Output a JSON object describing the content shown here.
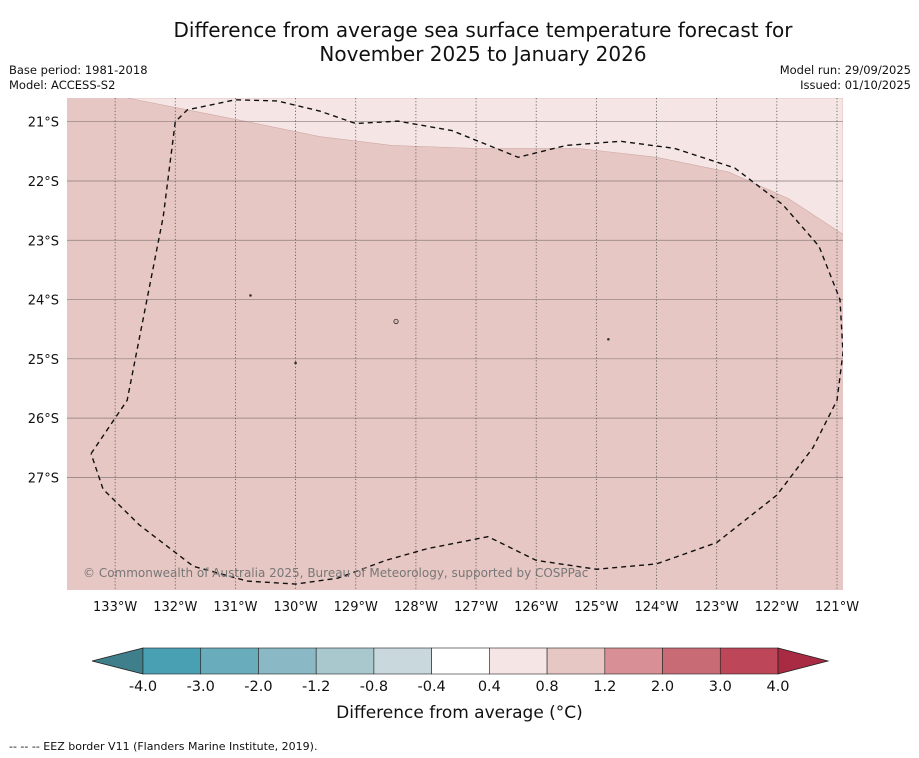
{
  "title_line1": "Difference from average sea surface temperature forecast for",
  "title_line2": "November 2025 to January 2026",
  "base_period": "Base period: 1981-2018",
  "model": "Model: ACCESS-S2",
  "model_run": "Model run: 29/09/2025",
  "issued": "Issued: 01/10/2025",
  "copyright": "© Commonwealth of Australia 2025, Bureau of Meteorology, supported by COSPPac",
  "colorbar_title": "Difference from average (°C)",
  "footnote": "--  --  -- EEZ border V11 (Flanders Marine Institute, 2019).",
  "chart_data": {
    "type": "map",
    "title": "Difference from average sea surface temperature forecast for November 2025 to January 2026",
    "lon_range": [
      -133.8,
      -120.9
    ],
    "lat_range": [
      -28.9,
      -20.6
    ],
    "lon_ticks": [
      -133,
      -132,
      -131,
      -130,
      -129,
      -128,
      -127,
      -126,
      -125,
      -124,
      -123,
      -122,
      -121
    ],
    "lon_tick_labels": [
      "133°W",
      "132°W",
      "131°W",
      "130°W",
      "129°W",
      "128°W",
      "127°W",
      "126°W",
      "125°W",
      "124°W",
      "123°W",
      "122°W",
      "121°W"
    ],
    "lat_ticks": [
      -21,
      -22,
      -23,
      -24,
      -25,
      -26,
      -27
    ],
    "lat_tick_labels": [
      "21°S",
      "22°S",
      "23°S",
      "24°S",
      "25°S",
      "26°S",
      "27°S"
    ],
    "grid": true,
    "fields": [
      {
        "range": "0.4 to 0.8",
        "color": "#f5e6e5",
        "region": "north-east corner",
        "boundary": [
          [
            -132.8,
            -20.6
          ],
          [
            -131.8,
            -20.8
          ],
          [
            -130.8,
            -21.0
          ],
          [
            -129.6,
            -21.25
          ],
          [
            -128.4,
            -21.4
          ],
          [
            -127.0,
            -21.45
          ],
          [
            -125.3,
            -21.45
          ],
          [
            -124.0,
            -21.6
          ],
          [
            -122.8,
            -21.85
          ],
          [
            -121.8,
            -22.3
          ],
          [
            -120.9,
            -22.9
          ]
        ]
      },
      {
        "range": "0.8 to 1.2",
        "color": "#e7c7c3",
        "region": "remainder of domain"
      }
    ],
    "islands": [
      [
        -130.75,
        -23.93
      ],
      [
        -128.33,
        -24.37
      ],
      [
        -130.0,
        -25.07
      ],
      [
        -124.8,
        -24.67
      ]
    ],
    "eez_border": [
      [
        -133.4,
        -26.6
      ],
      [
        -132.8,
        -25.7
      ],
      [
        -132.2,
        -22.6
      ],
      [
        -132.0,
        -21.0
      ],
      [
        -131.8,
        -20.8
      ],
      [
        -131.0,
        -20.63
      ],
      [
        -130.3,
        -20.65
      ],
      [
        -129.6,
        -20.82
      ],
      [
        -129.0,
        -21.03
      ],
      [
        -128.3,
        -20.99
      ],
      [
        -127.4,
        -21.15
      ],
      [
        -126.3,
        -21.6
      ],
      [
        -125.5,
        -21.4
      ],
      [
        -124.6,
        -21.33
      ],
      [
        -123.7,
        -21.45
      ],
      [
        -122.7,
        -21.78
      ],
      [
        -121.9,
        -22.4
      ],
      [
        -121.3,
        -23.1
      ],
      [
        -120.95,
        -24.0
      ],
      [
        -120.9,
        -24.9
      ],
      [
        -121.0,
        -25.7
      ],
      [
        -121.4,
        -26.5
      ],
      [
        -122.0,
        -27.3
      ],
      [
        -123.0,
        -28.1
      ],
      [
        -124.0,
        -28.46
      ],
      [
        -125.0,
        -28.55
      ],
      [
        -126.0,
        -28.4
      ],
      [
        -126.8,
        -28.0
      ],
      [
        -127.8,
        -28.2
      ],
      [
        -128.5,
        -28.4
      ],
      [
        -129.3,
        -28.7
      ],
      [
        -130.0,
        -28.8
      ],
      [
        -130.8,
        -28.75
      ],
      [
        -131.7,
        -28.5
      ],
      [
        -132.6,
        -27.8
      ],
      [
        -133.2,
        -27.2
      ],
      [
        -133.4,
        -26.6
      ]
    ],
    "colorbar": {
      "label": "Difference from average (°C)",
      "tick_labels": [
        "-4.0",
        "-3.0",
        "-2.0",
        "-1.2",
        "-0.8",
        "-0.4",
        "0.4",
        "0.8",
        "1.2",
        "2.0",
        "3.0",
        "4.0"
      ],
      "colors": [
        "#3f7f8c",
        "#4aa0b3",
        "#69acbb",
        "#8ab8c4",
        "#a9c8ce",
        "#c8d8dc",
        "#ffffff",
        "#f5e6e5",
        "#e7c7c3",
        "#d88f95",
        "#c96b75",
        "#bd4658",
        "#a82a43"
      ],
      "extend": "both"
    }
  }
}
